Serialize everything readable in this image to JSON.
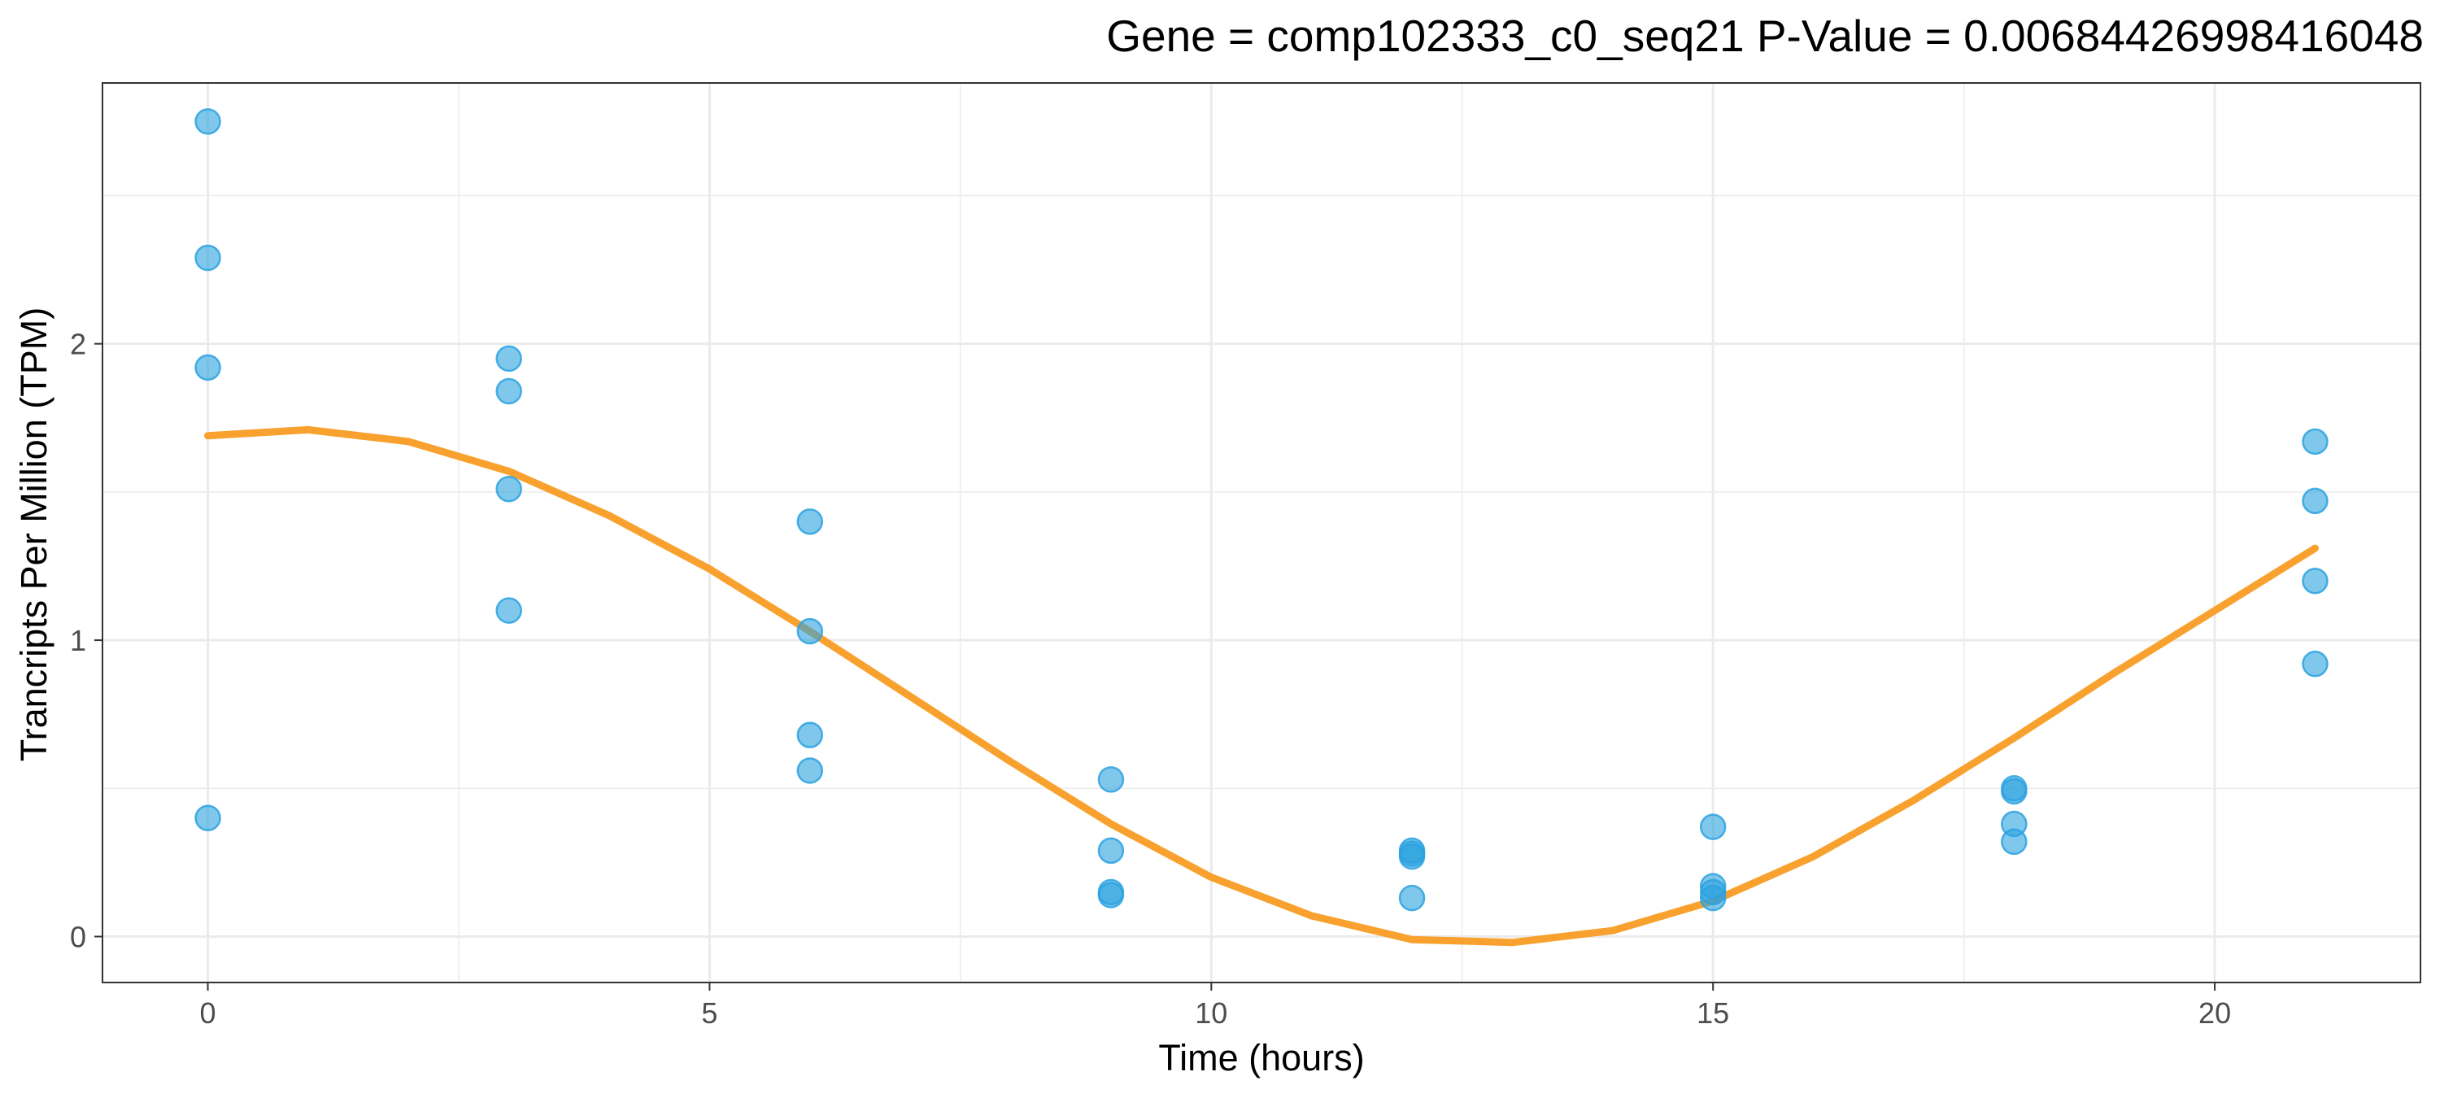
{
  "chart_data": {
    "type": "scatter",
    "title": "Gene =  comp102333_c0_seq21  P-Value =  0.00684426998416048",
    "xlabel": "Time (hours)",
    "ylabel": "Trancripts Per Million (TPM)",
    "xlim": [
      -1.05,
      22.05
    ],
    "ylim": [
      -0.155,
      2.88
    ],
    "x_ticks": [
      0,
      5,
      10,
      15,
      20
    ],
    "x_tick_labels": [
      "0",
      "5",
      "10",
      "15",
      "20"
    ],
    "y_ticks": [
      0,
      1,
      2
    ],
    "y_tick_labels": [
      "0",
      "1",
      "2"
    ],
    "x_minor_ticks": [
      2.5,
      7.5,
      12.5,
      17.5
    ],
    "y_minor_ticks": [
      0.5,
      1.5,
      2.5
    ],
    "grid": true,
    "legend": "none",
    "point_color": "#2ba2e0",
    "line_color": "#f9a12e",
    "series": [
      {
        "type": "scatter",
        "x": [
          0,
          0,
          0,
          0,
          3,
          3,
          3,
          3,
          6,
          6,
          6,
          6,
          9,
          9,
          9,
          9,
          12,
          12,
          12,
          12,
          15,
          15,
          15,
          15,
          18,
          18,
          18,
          18,
          21,
          21,
          21,
          21
        ],
        "y": [
          2.75,
          2.29,
          1.92,
          0.4,
          1.95,
          1.84,
          1.51,
          1.1,
          1.4,
          1.03,
          0.68,
          0.56,
          0.53,
          0.29,
          0.15,
          0.14,
          0.29,
          0.27,
          0.13,
          0.28,
          0.37,
          0.17,
          0.13,
          0.15,
          0.5,
          0.49,
          0.38,
          0.32,
          1.67,
          1.47,
          1.2,
          0.92
        ]
      },
      {
        "type": "line",
        "x": [
          0,
          1,
          2,
          3,
          4,
          5,
          6,
          7,
          8,
          9,
          10,
          11,
          12,
          13,
          14,
          15,
          16,
          17,
          18,
          19,
          20,
          21
        ],
        "y": [
          1.69,
          1.71,
          1.67,
          1.57,
          1.42,
          1.24,
          1.03,
          0.81,
          0.59,
          0.38,
          0.2,
          0.07,
          -0.01,
          -0.02,
          0.02,
          0.12,
          0.27,
          0.46,
          0.67,
          0.89,
          1.1,
          1.31
        ]
      }
    ]
  }
}
